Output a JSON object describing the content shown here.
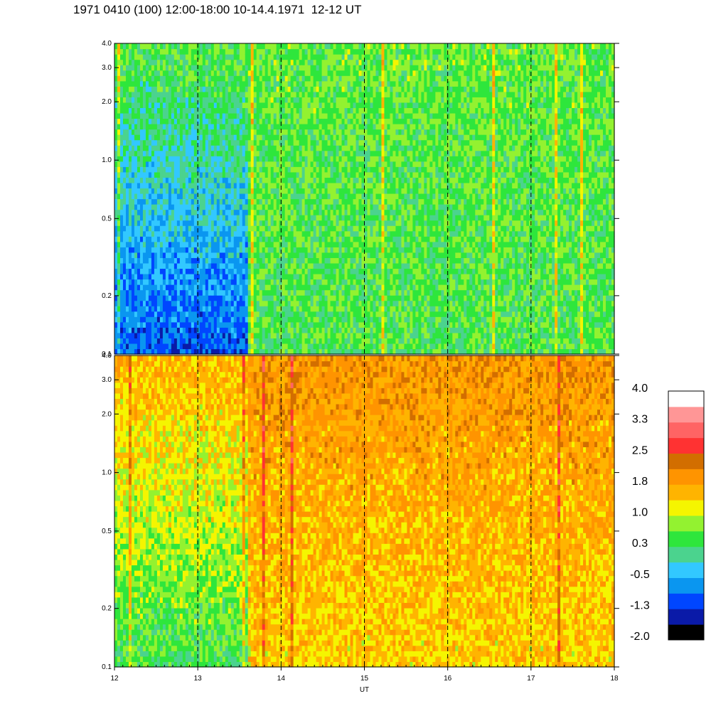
{
  "title": "1971 0410 (100) 12:00-18:00 10-14.4.1971  12-12 UT",
  "chart_data": {
    "type": "heatmap",
    "panels": [
      {
        "name": "upper",
        "y_scale": "log",
        "ylim": [
          0.1,
          4.0
        ]
      },
      {
        "name": "lower",
        "y_scale": "log",
        "ylim": [
          0.1,
          4.0
        ]
      }
    ],
    "xlabel": "UT",
    "xlim": [
      12,
      18
    ],
    "x_ticks": [
      12,
      13,
      14,
      15,
      16,
      17,
      18
    ],
    "x_tick_labels": [
      "12",
      "13",
      "14",
      "15",
      "16",
      "17",
      "18"
    ],
    "y_ticks": [
      0.1,
      0.2,
      0.5,
      1.0,
      2.0,
      3.0,
      4.0
    ],
    "y_tick_labels": [
      "0.1",
      "0.2",
      "0.5",
      "1.0",
      "2.0",
      "3.0",
      "4.0"
    ],
    "dashed_vertical_lines_at": [
      13,
      14,
      15,
      16,
      17
    ],
    "colorbar": {
      "range": [
        -2.0,
        4.0
      ],
      "labels": [
        "4.0",
        "3.3",
        "2.5",
        "1.8",
        "1.0",
        "0.3",
        "-0.5",
        "-1.3",
        "-2.0"
      ],
      "colors_bottom_to_top": [
        "#000000",
        "#0a1aa8",
        "#0046ff",
        "#0a96f0",
        "#32c8ff",
        "#4bd38e",
        "#2ee63c",
        "#93f230",
        "#f5f500",
        "#ffb400",
        "#ff9400",
        "#d26e00",
        "#ff3232",
        "#ff6464",
        "#ff9696",
        "#ffffff"
      ]
    },
    "upper_panel_regions": [
      {
        "x_range": [
          12.0,
          13.6
        ],
        "low_freq": -1.0,
        "high_freq": 0.5
      },
      {
        "x_range": [
          13.6,
          18.0
        ],
        "low_freq": 0.4,
        "high_freq": 0.6
      }
    ],
    "lower_panel_regions": [
      {
        "x_range": [
          12.0,
          13.6
        ],
        "low_freq": 0.4,
        "high_freq": 1.6
      },
      {
        "x_range": [
          13.6,
          18.0
        ],
        "low_freq": 1.4,
        "high_freq": 1.9
      }
    ]
  }
}
